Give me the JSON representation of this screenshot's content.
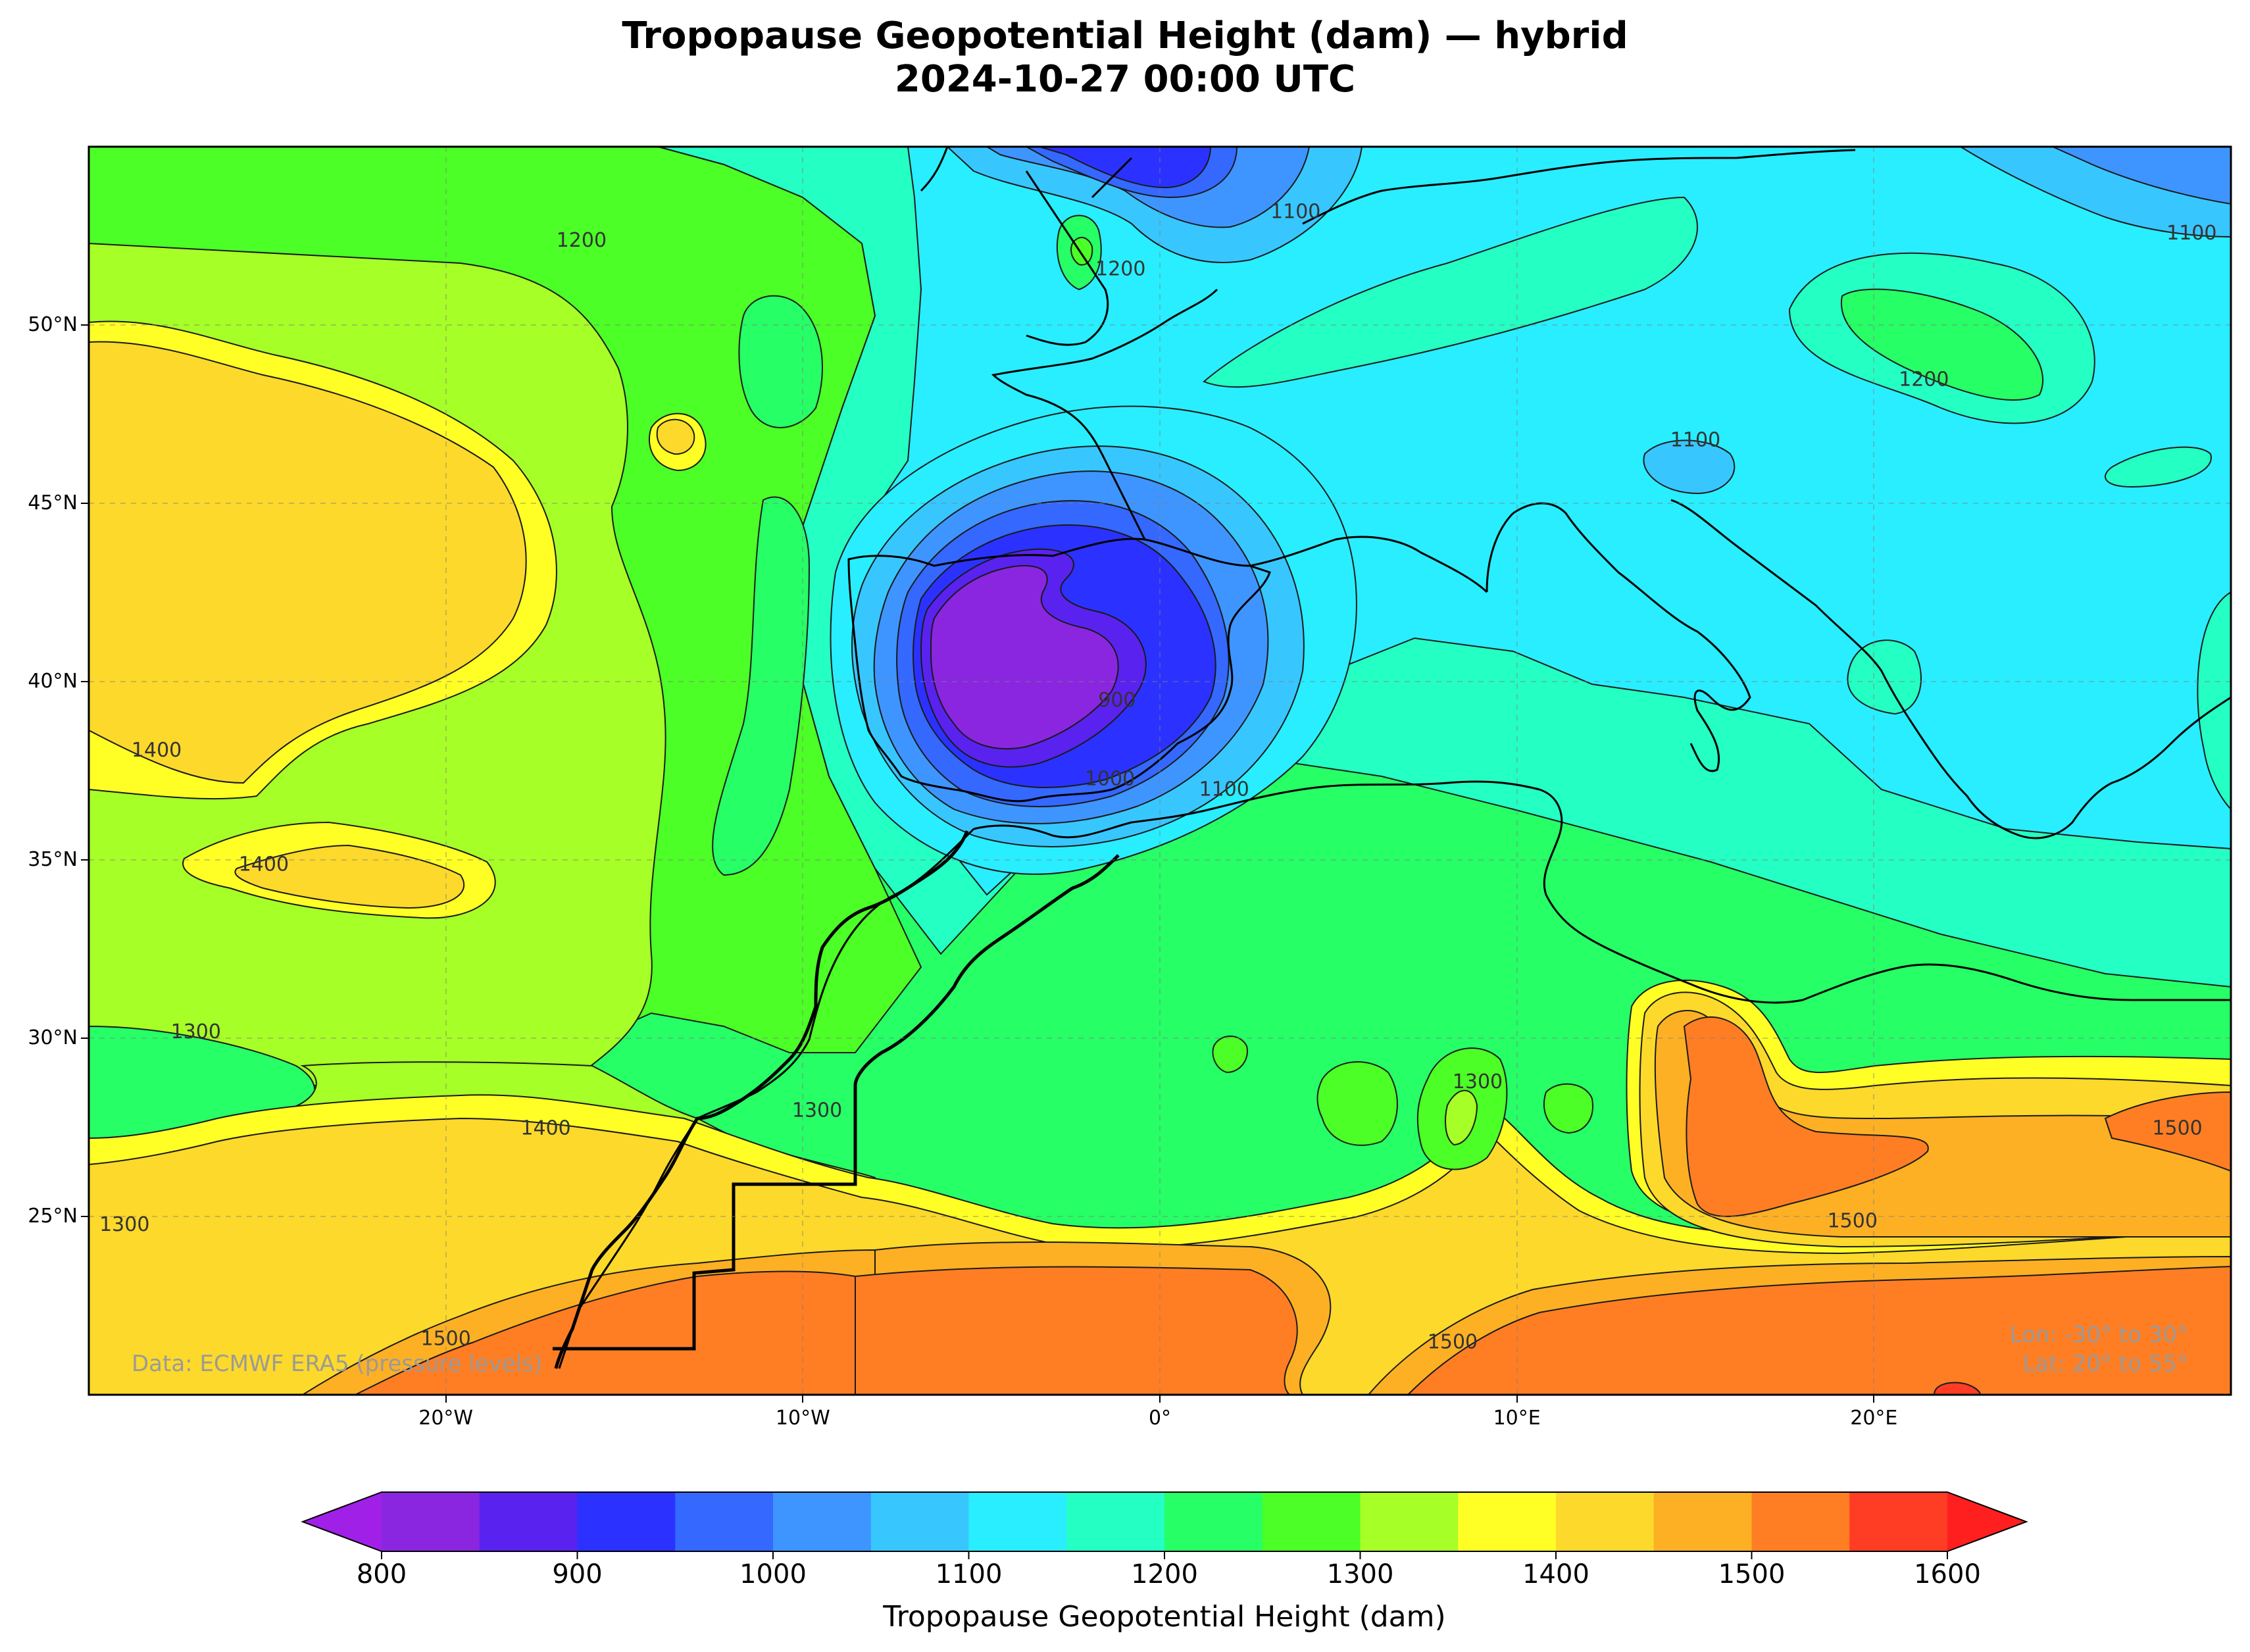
{
  "title": {
    "line1": "Tropopause Geopotential Height (dam) — hybrid",
    "line2": "2024-10-27 00:00 UTC"
  },
  "map": {
    "lon_range": [
      -30,
      30
    ],
    "lat_range": [
      20,
      55
    ],
    "x_ticks": [
      "20°W",
      "10°W",
      "0°",
      "10°E",
      "20°E"
    ],
    "x_tick_lons": [
      -20,
      -10,
      0,
      10,
      20
    ],
    "y_ticks": [
      "25°N",
      "30°N",
      "35°N",
      "40°N",
      "45°N",
      "50°N"
    ],
    "y_tick_lats": [
      25,
      30,
      35,
      40,
      45,
      50
    ],
    "gridlines": true,
    "source_note": "Data: ECMWF ERA5 (pressure levels)",
    "extent_note_lon": "Lon: -30° to 30°",
    "extent_note_lat": "Lat: 20° to 55°",
    "contour_labels": [
      {
        "text": "1200",
        "lon": -16.2,
        "lat": 52.4
      },
      {
        "text": "1100",
        "lon": 3.8,
        "lat": 53.2
      },
      {
        "text": "1200",
        "lon": -1.1,
        "lat": 51.6
      },
      {
        "text": "1100",
        "lon": 28.9,
        "lat": 52.6
      },
      {
        "text": "1200",
        "lon": 21.4,
        "lat": 48.5
      },
      {
        "text": "1100",
        "lon": 15.0,
        "lat": 46.8
      },
      {
        "text": "1400",
        "lon": -28.1,
        "lat": 38.1
      },
      {
        "text": "1400",
        "lon": -25.1,
        "lat": 34.9
      },
      {
        "text": "900",
        "lon": -1.2,
        "lat": 39.5
      },
      {
        "text": "1000",
        "lon": -1.4,
        "lat": 37.3
      },
      {
        "text": "1100",
        "lon": 1.8,
        "lat": 37.0
      },
      {
        "text": "1300",
        "lon": -27.0,
        "lat": 30.2
      },
      {
        "text": "1300",
        "lon": 8.9,
        "lat": 28.8
      },
      {
        "text": "1300",
        "lon": -9.6,
        "lat": 28.0
      },
      {
        "text": "1400",
        "lon": -17.2,
        "lat": 27.5
      },
      {
        "text": "1500",
        "lon": 28.5,
        "lat": 27.5
      },
      {
        "text": "1500",
        "lon": 19.4,
        "lat": 24.9
      },
      {
        "text": "1300",
        "lon": -29.0,
        "lat": 24.8
      },
      {
        "text": "1500",
        "lon": -20.0,
        "lat": 21.6
      },
      {
        "text": "1500",
        "lon": 8.2,
        "lat": 21.5
      }
    ]
  },
  "colorbar": {
    "label": "Tropopause Geopotential Height (dam)",
    "min": 800,
    "max": 1600,
    "step": 50,
    "extend": "both",
    "tick_labels": [
      "800",
      "900",
      "1000",
      "1100",
      "1200",
      "1300",
      "1400",
      "1500",
      "1600"
    ],
    "under_color": "#a020e8",
    "over_color": "#ff1f1f",
    "colors": [
      "#8a26e0",
      "#5a22ee",
      "#2b32ff",
      "#3468ff",
      "#3e95ff",
      "#38c6ff",
      "#28eeff",
      "#24ffc4",
      "#26ff66",
      "#4cff26",
      "#a6ff26",
      "#ffff26",
      "#fcd92a",
      "#fdb024",
      "#ff7e24",
      "#ff3c24"
    ]
  }
}
